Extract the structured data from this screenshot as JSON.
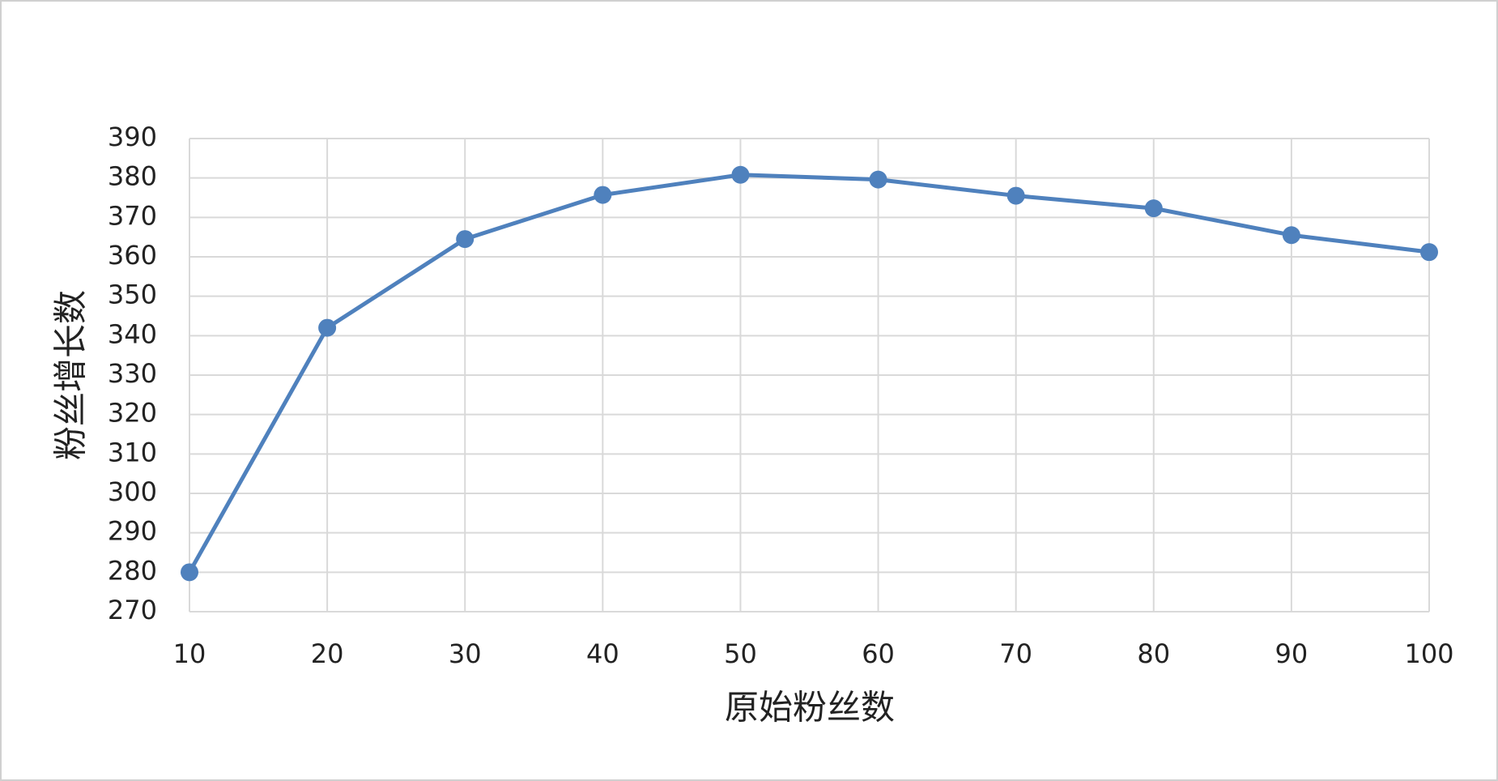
{
  "chart_data": {
    "type": "line",
    "x_label": "原始粉丝数",
    "y_label": "粉丝增长数",
    "x": [
      10,
      20,
      30,
      40,
      50,
      60,
      70,
      80,
      90,
      100
    ],
    "series": [
      {
        "color": "#4f81bd",
        "values": [
          280,
          342,
          364.5,
          375.7,
          380.8,
          379.6,
          375.5,
          372.3,
          365.5,
          361.2
        ]
      }
    ],
    "xlim": [
      10,
      100
    ],
    "xticks": [
      10,
      20,
      30,
      40,
      50,
      60,
      70,
      80,
      90,
      100
    ],
    "ylim": [
      270,
      390
    ],
    "yticks": [
      270,
      280,
      290,
      300,
      310,
      320,
      330,
      340,
      350,
      360,
      370,
      380,
      390
    ],
    "grid": true,
    "markers": true
  }
}
